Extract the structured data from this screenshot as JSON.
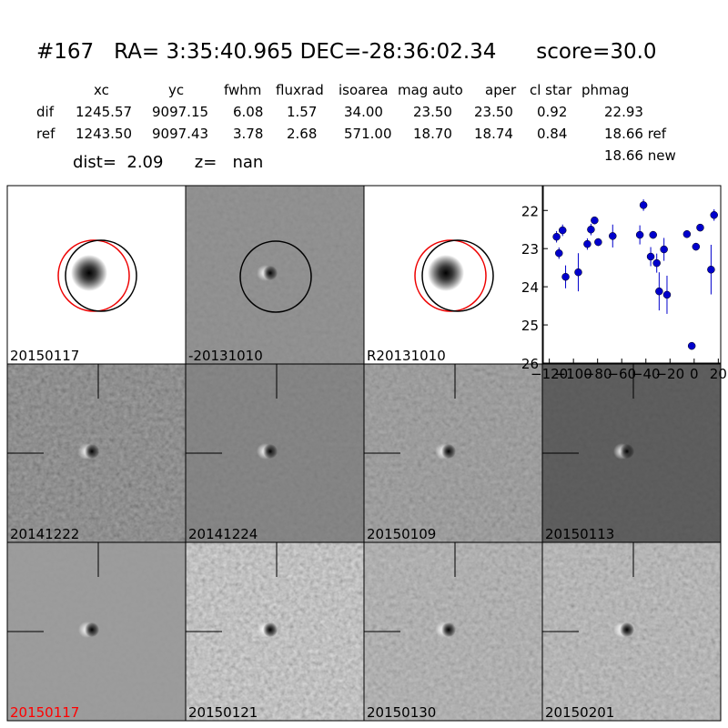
{
  "header": {
    "title": "#167   RA= 3:35:40.965 DEC=-28:36:02.34      score=30.0",
    "dist": "dist=  2.09      z=   nan"
  },
  "table": {
    "header": [
      "xc",
      "yc",
      "fwhm",
      "fluxrad",
      "isoarea",
      "mag auto",
      "aper",
      "cl star",
      "phmag"
    ],
    "rows": [
      [
        "dif",
        "1245.57",
        "9097.15",
        "6.08",
        "1.57",
        "34.00",
        "23.50",
        "23.50",
        "0.92",
        "22.93"
      ],
      [
        "ref",
        "1243.50",
        "9097.43",
        "3.78",
        "2.68",
        "571.00",
        "18.70",
        "18.74",
        "0.84",
        "18.66 ref"
      ]
    ],
    "extra": "18.66 new"
  },
  "stamps": [
    {
      "label": "20150117",
      "color": "#000000"
    },
    {
      "label": "-20131010",
      "color": "#000000"
    },
    {
      "label": "R20131010",
      "color": "#000000"
    },
    {
      "label": "20141222",
      "color": "#000000"
    },
    {
      "label": "20141224",
      "color": "#000000"
    },
    {
      "label": "20150109",
      "color": "#000000"
    },
    {
      "label": "20150113",
      "color": "#000000"
    },
    {
      "label": "20150117",
      "color": "#ff0000"
    },
    {
      "label": "20150121",
      "color": "#000000"
    },
    {
      "label": "20150130",
      "color": "#000000"
    },
    {
      "label": "20150201",
      "color": "#000000"
    }
  ],
  "chart_data": {
    "type": "errorbar",
    "color": "#0000cc",
    "invert_y": true,
    "x": [
      -114,
      -112,
      -109,
      -106.5,
      -96,
      -88.5,
      -85.5,
      -82.5,
      -79.5,
      -67.5,
      -45,
      -42,
      -36,
      -34,
      -31,
      -29,
      -25,
      -22.5,
      -6,
      -2,
      1.5,
      5,
      14,
      16.5
    ],
    "values": [
      22.69,
      23.12,
      22.52,
      23.74,
      23.62,
      22.88,
      22.5,
      22.26,
      22.83,
      22.67,
      22.64,
      21.86,
      23.21,
      22.64,
      23.38,
      24.12,
      23.02,
      24.21,
      22.62,
      25.55,
      22.95,
      22.45,
      23.55,
      22.12
    ],
    "errors": [
      0.15,
      0.15,
      0.15,
      0.3,
      0.5,
      0.15,
      0.15,
      0.1,
      0.1,
      0.3,
      0.25,
      0.15,
      0.25,
      0.1,
      0.25,
      0.5,
      0.3,
      0.5,
      0.1,
      0.1,
      0.1,
      0.08,
      0.65,
      0.15
    ],
    "xlim": [
      -125,
      22
    ],
    "ylim": [
      21.35,
      26
    ],
    "xticks": [
      {
        "value": -120,
        "label": "−120"
      },
      {
        "value": -100,
        "label": "−100"
      },
      {
        "value": -80,
        "label": "−80"
      },
      {
        "value": -60,
        "label": "−60"
      },
      {
        "value": -40,
        "label": "−40"
      },
      {
        "value": -20,
        "label": "−20"
      },
      0,
      20
    ],
    "yticks": [
      22,
      23,
      24,
      25,
      26
    ]
  }
}
